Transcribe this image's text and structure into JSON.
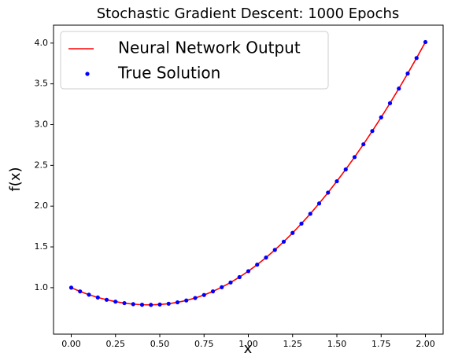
{
  "chart_data": {
    "type": "line",
    "title": "Stochastic Gradient Descent: 1000 Epochs",
    "xlabel": "x",
    "ylabel": "f(x)",
    "x": [
      0,
      0.05,
      0.1,
      0.15,
      0.2,
      0.25,
      0.3,
      0.35,
      0.4,
      0.45,
      0.5,
      0.55,
      0.6,
      0.65,
      0.7,
      0.75,
      0.8,
      0.85,
      0.9,
      0.95,
      1.0,
      1.05,
      1.1,
      1.15,
      1.2,
      1.25,
      1.3,
      1.35,
      1.4,
      1.45,
      1.5,
      1.55,
      1.6,
      1.65,
      1.7,
      1.75,
      1.8,
      1.85,
      1.9,
      1.95,
      2.0
    ],
    "series": [
      {
        "name": "Neural Network Output",
        "color": "#ff0000",
        "style": "line",
        "values": [
          1.0,
          0.9536,
          0.9137,
          0.8798,
          0.8514,
          0.8283,
          0.8104,
          0.7978,
          0.7905,
          0.7889,
          0.7931,
          0.8033,
          0.82,
          0.8431,
          0.8731,
          0.9101,
          0.9541,
          1.0053,
          1.0637,
          1.1293,
          1.2022,
          1.2821,
          1.3692,
          1.4631,
          1.5639,
          1.6714,
          1.7855,
          1.9061,
          2.033,
          2.1661,
          2.3053,
          2.4504,
          2.6015,
          2.7584,
          2.921,
          3.0892,
          3.2629,
          3.4422,
          3.6269,
          3.8169,
          4.0123
        ]
      },
      {
        "name": "True Solution",
        "color": "#0000ff",
        "style": "markers",
        "values": [
          1.0,
          0.9536,
          0.9137,
          0.8798,
          0.8514,
          0.8283,
          0.8104,
          0.7978,
          0.7905,
          0.7889,
          0.7931,
          0.8033,
          0.82,
          0.8431,
          0.8731,
          0.9101,
          0.9541,
          1.0053,
          1.0637,
          1.1293,
          1.2022,
          1.2821,
          1.3692,
          1.4631,
          1.5639,
          1.6714,
          1.7855,
          1.9061,
          2.033,
          2.1661,
          2.3053,
          2.4504,
          2.6015,
          2.7584,
          2.921,
          3.0892,
          3.2629,
          3.4422,
          3.6269,
          3.8169,
          4.0123
        ]
      }
    ],
    "xlim": [
      -0.1,
      2.1
    ],
    "ylim": [
      0.43,
      4.22
    ],
    "xticks": [
      {
        "value": 0,
        "label": "0.00"
      },
      {
        "value": 0.25,
        "label": "0.25"
      },
      {
        "value": 0.5,
        "label": "0.50"
      },
      {
        "value": 0.75,
        "label": "0.75"
      },
      {
        "value": 1,
        "label": "1.00"
      },
      {
        "value": 1.25,
        "label": "1.25"
      },
      {
        "value": 1.5,
        "label": "1.50"
      },
      {
        "value": 1.75,
        "label": "1.75"
      },
      {
        "value": 2,
        "label": "2.00"
      }
    ],
    "yticks": [
      {
        "value": 1,
        "label": "1.0"
      },
      1.5,
      {
        "value": 2,
        "label": "2.0"
      },
      2.5,
      {
        "value": 3,
        "label": "3.0"
      },
      3.5,
      {
        "value": 4,
        "label": "4.0"
      }
    ],
    "grid": false,
    "legend": "upper left"
  }
}
